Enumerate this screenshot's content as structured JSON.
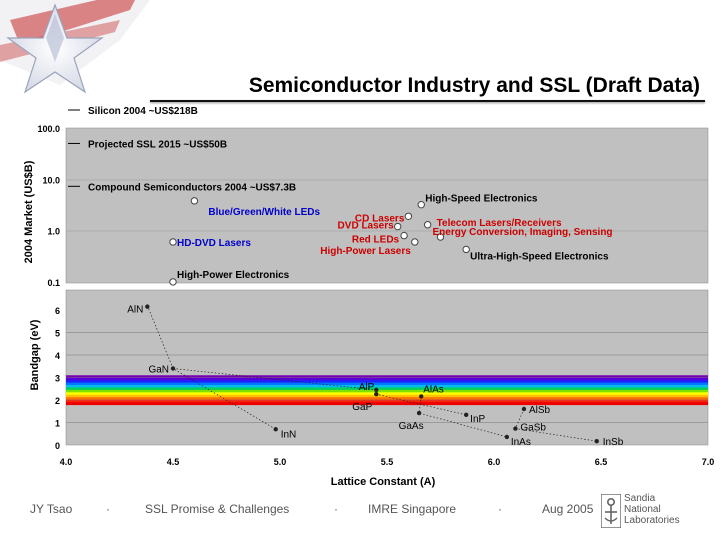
{
  "slide": {
    "title": "Semiconductor Industry and SSL (Draft Data)",
    "footer": {
      "author": "JY Tsao",
      "sep1": "·",
      "topic": "SSL Promise & Challenges",
      "sep2": "·",
      "venue": "IMRE Singapore",
      "sep3": "·",
      "date": "Aug 2005"
    },
    "logo": {
      "line1": "Sandia",
      "line2": "National",
      "line3": "Laboratories",
      "icon": "sandia-logo-icon"
    }
  },
  "chart_data": [
    {
      "type": "scatter",
      "ylabel": "2004 Market (US$B)",
      "y_scale": "log",
      "yticks": [
        "100.0",
        "10.0",
        "1.0",
        "0.1"
      ],
      "ylim": [
        0.1,
        100
      ],
      "grid": true,
      "background": "#c0c0c0",
      "reference_lines": [
        {
          "label": "Silicon 2004 ~US$218B",
          "value": 218
        },
        {
          "label": "Projected SSL 2015 ~US$50B",
          "value": 50
        },
        {
          "label": "Compound Semiconductors 2004 ~US$7.3B",
          "value": 7.3
        }
      ],
      "points": [
        {
          "label": "Blue/Green/White LEDs",
          "x": 4.6,
          "y": 3.8,
          "color": "#0000cc"
        },
        {
          "label": "HD-DVD Lasers",
          "x": 4.5,
          "y": 0.6,
          "color": "#0000cc"
        },
        {
          "label": "High-Power Electronics",
          "x": 4.5,
          "y": 0.1,
          "color": "#000000"
        },
        {
          "label": "CD Lasers",
          "x": 5.6,
          "y": 1.9,
          "color": "#cc0000"
        },
        {
          "label": "DVD Lasers",
          "x": 5.55,
          "y": 1.2,
          "color": "#cc0000"
        },
        {
          "label": "Red LEDs",
          "x": 5.58,
          "y": 0.8,
          "color": "#cc0000"
        },
        {
          "label": "High-Power Lasers",
          "x": 5.63,
          "y": 0.6,
          "color": "#cc0000"
        },
        {
          "label": "High-Speed Electronics",
          "x": 5.66,
          "y": 3.2,
          "color": "#000000"
        },
        {
          "label": "Telecom Lasers/Receivers",
          "x": 5.69,
          "y": 1.3,
          "color": "#cc0000"
        },
        {
          "label": "Energy Conversion, Imaging, Sensing",
          "x": 5.75,
          "y": 0.75,
          "color": "#cc0000"
        },
        {
          "label": "Ultra-High-Speed Electronics",
          "x": 5.87,
          "y": 0.43,
          "color": "#000000"
        }
      ]
    },
    {
      "type": "scatter",
      "ylabel": "Bandgap (eV)",
      "xlabel": "Lattice Constant (A)",
      "xlim": [
        4.0,
        7.0
      ],
      "ylim": [
        0,
        6
      ],
      "xticks": [
        "4.0",
        "4.5",
        "5.0",
        "5.5",
        "6.0",
        "6.5",
        "7.0"
      ],
      "yticks": [
        "0",
        "1",
        "2",
        "3",
        "4",
        "5",
        "6"
      ],
      "visible_spectrum_band_eV": [
        1.8,
        3.1
      ],
      "points": [
        {
          "label": "AlN",
          "x": 4.38,
          "y": 6.2
        },
        {
          "label": "GaN",
          "x": 4.5,
          "y": 3.4
        },
        {
          "label": "InN",
          "x": 4.98,
          "y": 0.7
        },
        {
          "label": "AlP",
          "x": 5.45,
          "y": 2.45
        },
        {
          "label": "GaP",
          "x": 5.45,
          "y": 2.26
        },
        {
          "label": "AlAs",
          "x": 5.66,
          "y": 2.16
        },
        {
          "label": "GaAs",
          "x": 5.65,
          "y": 1.42
        },
        {
          "label": "InP",
          "x": 5.87,
          "y": 1.34
        },
        {
          "label": "AlSb",
          "x": 6.14,
          "y": 1.6
        },
        {
          "label": "GaSb",
          "x": 6.1,
          "y": 0.73
        },
        {
          "label": "InAs",
          "x": 6.06,
          "y": 0.36
        },
        {
          "label": "InSb",
          "x": 6.48,
          "y": 0.17
        }
      ]
    }
  ]
}
